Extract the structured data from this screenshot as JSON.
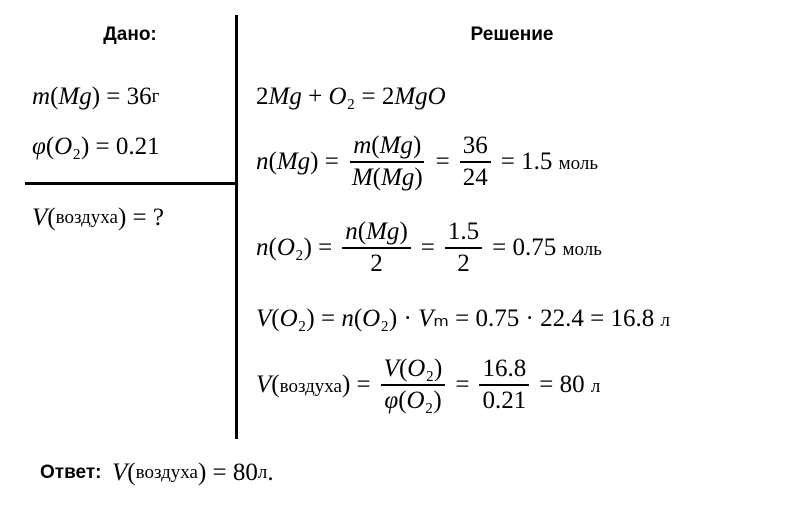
{
  "given": {
    "title": "Дано:",
    "items": [
      "m(Mg) = 36 г",
      "φ(O₂) = 0.21"
    ],
    "find": "V(воздуха) = ?"
  },
  "solution": {
    "title": "Решение",
    "lines": [
      [
        "2Mg + O₂ = 2MgO"
      ],
      [
        "n(Mg) =",
        {
          "num": "m(Mg)",
          "den": "M(Mg)"
        },
        "=",
        {
          "num": "36",
          "den": "24"
        },
        "= 1.5 моль"
      ],
      [
        "n(O₂) =",
        {
          "num": "n(Mg)",
          "den": "2"
        },
        "=",
        {
          "num": "1.5",
          "den": "2"
        },
        "= 0.75 моль"
      ],
      [
        "V(O₂) = n(O₂) · Vₘ = 0.75 · 22.4 = 16.8 л"
      ],
      [
        "V(воздуха) =",
        {
          "num": "V(O₂)",
          "den": "φ(O₂)"
        },
        "=",
        {
          "num": "16.8",
          "den": "0.21"
        },
        "= 80 л"
      ]
    ]
  },
  "answer": {
    "label": "Ответ:",
    "text": "V(воздуха) = 80 л ."
  }
}
